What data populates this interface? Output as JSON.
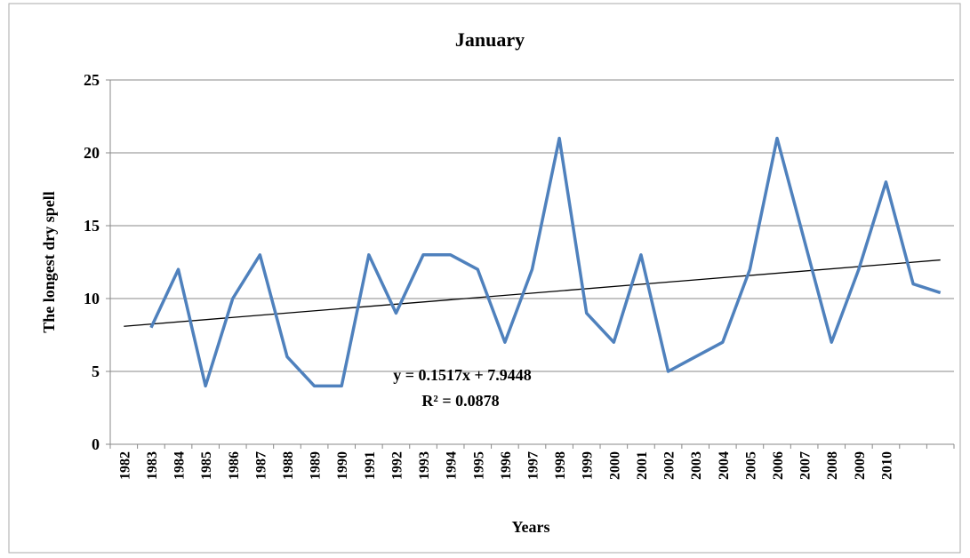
{
  "chart_data": {
    "type": "line",
    "title": "January",
    "x_label": "Years",
    "y_label": "The longest dry spell",
    "categories": [
      "1982",
      "1983",
      "1984",
      "1985",
      "1986",
      "1987",
      "1988",
      "1989",
      "1990",
      "1991",
      "1992",
      "1993",
      "1994",
      "1995",
      "1996",
      "1997",
      "1998",
      "1999",
      "2000",
      "2001",
      "2002",
      "2003",
      "2004",
      "2005",
      "2006",
      "2007",
      "2008",
      "2009",
      "2010",
      null,
      null
    ],
    "values": [
      null,
      8,
      12,
      4,
      10,
      13,
      6,
      4,
      4,
      13,
      9,
      13,
      13,
      12,
      7,
      12,
      21,
      9,
      7,
      13,
      5,
      6,
      7,
      12,
      21,
      14,
      7,
      12,
      18,
      11,
      10.4
    ],
    "color": "#4f81bd",
    "ylim": [
      0,
      25
    ],
    "yticks": [
      0,
      5,
      10,
      15,
      20,
      25
    ],
    "grid": true,
    "trendline": {
      "slope": 0.1517,
      "intercept": 7.9448,
      "label": "y = 0.1517x + 7.9448",
      "r2_label": "R² = 0.0878"
    }
  }
}
